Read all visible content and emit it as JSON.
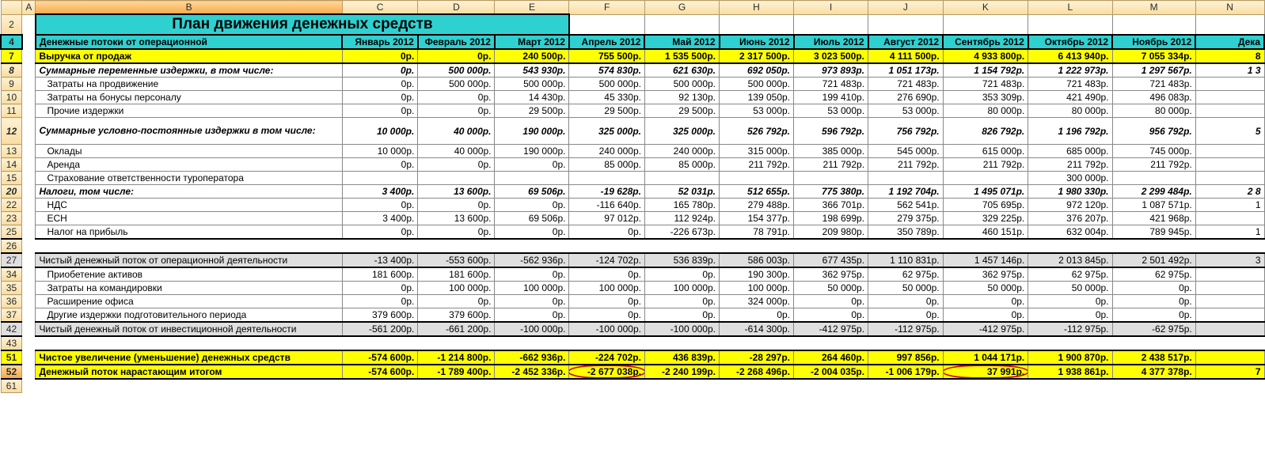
{
  "cols": [
    {
      "letter": "A",
      "cls": "colA",
      "sel": false
    },
    {
      "letter": "B",
      "cls": "colB",
      "sel": true
    },
    {
      "letter": "C",
      "cls": "colMon",
      "sel": false
    },
    {
      "letter": "D",
      "cls": "colMon",
      "sel": false
    },
    {
      "letter": "E",
      "cls": "colMon",
      "sel": false
    },
    {
      "letter": "F",
      "cls": "colMon",
      "sel": false
    },
    {
      "letter": "G",
      "cls": "colMon",
      "sel": false
    },
    {
      "letter": "H",
      "cls": "colMon",
      "sel": false
    },
    {
      "letter": "I",
      "cls": "colMon",
      "sel": false
    },
    {
      "letter": "J",
      "cls": "colMon",
      "sel": false
    },
    {
      "letter": "K",
      "cls": "colMonW",
      "sel": false
    },
    {
      "letter": "L",
      "cls": "colMonW",
      "sel": false
    },
    {
      "letter": "M",
      "cls": "colMonW",
      "sel": false
    },
    {
      "letter": "N",
      "cls": "colMon",
      "sel": false
    }
  ],
  "title": "План движения денежных средств",
  "months": [
    "Январь 2012",
    "Февраль 2012",
    "Март 2012",
    "Апрель 2012",
    "Май 2012",
    "Июнь 2012",
    "Июль 2012",
    "Август 2012",
    "Сентябрь 2012",
    "Октябрь 2012",
    "Ноябрь 2012",
    "Дека"
  ],
  "header_label": "Денежные потоки от операционной",
  "rows": [
    {
      "rn": "7",
      "cls": "yellow b2",
      "label": "Выручка от продаж",
      "vals": [
        "0р.",
        "0р.",
        "240 500р.",
        "755 500р.",
        "1 535 500р.",
        "2 317 500р.",
        "3 023 500р.",
        "4 111 500р.",
        "4 933 800р.",
        "6 413 940р.",
        "7 055 334р.",
        "8"
      ]
    },
    {
      "rn": "8",
      "cls": "bi",
      "label": "Суммарные переменные издержки, в том числе:",
      "vals": [
        "0р.",
        "500 000р.",
        "543 930р.",
        "574 830р.",
        "621 630р.",
        "692 050р.",
        "973 893р.",
        "1 051 173р.",
        "1 154 792р.",
        "1 222 973р.",
        "1 297 567р.",
        "1 3"
      ]
    },
    {
      "rn": "9",
      "cls": "",
      "ind": true,
      "label": "Затраты на продвижение",
      "vals": [
        "0р.",
        "500 000р.",
        "500 000р.",
        "500 000р.",
        "500 000р.",
        "500 000р.",
        "721 483р.",
        "721 483р.",
        "721 483р.",
        "721 483р.",
        "721 483р.",
        ""
      ]
    },
    {
      "rn": "10",
      "cls": "",
      "ind": true,
      "label": "Затраты на бонусы персоналу",
      "vals": [
        "0р.",
        "0р.",
        "14 430р.",
        "45 330р.",
        "92 130р.",
        "139 050р.",
        "199 410р.",
        "276 690р.",
        "353 309р.",
        "421 490р.",
        "496 083р.",
        ""
      ]
    },
    {
      "rn": "11",
      "cls": "",
      "ind": true,
      "label": "Прочие издержки",
      "vals": [
        "0р.",
        "0р.",
        "29 500р.",
        "29 500р.",
        "29 500р.",
        "53 000р.",
        "53 000р.",
        "53 000р.",
        "80 000р.",
        "80 000р.",
        "80 000р.",
        ""
      ]
    },
    {
      "rn": "12",
      "cls": "bi",
      "tall": true,
      "label": "Суммарные условно-постоянные издержки в том числе:",
      "vals": [
        "10 000р.",
        "40 000р.",
        "190 000р.",
        "325 000р.",
        "325 000р.",
        "526 792р.",
        "596 792р.",
        "756 792р.",
        "826 792р.",
        "1 196 792р.",
        "956 792р.",
        "5"
      ]
    },
    {
      "rn": "13",
      "cls": "",
      "ind": true,
      "label": "Оклады",
      "vals": [
        "10 000р.",
        "40 000р.",
        "190 000р.",
        "240 000р.",
        "240 000р.",
        "315 000р.",
        "385 000р.",
        "545 000р.",
        "615 000р.",
        "685 000р.",
        "745 000р.",
        ""
      ]
    },
    {
      "rn": "14",
      "cls": "",
      "ind": true,
      "label": "Аренда",
      "vals": [
        "0р.",
        "0р.",
        "0р.",
        "85 000р.",
        "85 000р.",
        "211 792р.",
        "211 792р.",
        "211 792р.",
        "211 792р.",
        "211 792р.",
        "211 792р.",
        ""
      ]
    },
    {
      "rn": "15",
      "cls": "",
      "ind": true,
      "label": "Страхование ответственности туроператора",
      "vals": [
        "",
        "",
        "",
        "",
        "",
        "",
        "",
        "",
        "",
        "300 000р.",
        "",
        ""
      ]
    },
    {
      "rn": "20",
      "cls": "bi",
      "label": "Налоги, том числе:",
      "vals": [
        "3 400р.",
        "13 600р.",
        "69 506р.",
        "-19 628р.",
        "52 031р.",
        "512 655р.",
        "775 380р.",
        "1 192 704р.",
        "1 495 071р.",
        "1 980 330р.",
        "2 299 484р.",
        "2 8"
      ]
    },
    {
      "rn": "22",
      "cls": "",
      "ind": true,
      "label": "НДС",
      "vals": [
        "0р.",
        "0р.",
        "0р.",
        "-116 640р.",
        "165 780р.",
        "279 488р.",
        "366 701р.",
        "562 541р.",
        "705 695р.",
        "972 120р.",
        "1 087 571р.",
        "1"
      ]
    },
    {
      "rn": "23",
      "cls": "",
      "ind": true,
      "label": "ЕСН",
      "vals": [
        "3 400р.",
        "13 600р.",
        "69 506р.",
        "97 012р.",
        "112 924р.",
        "154 377р.",
        "198 699р.",
        "279 375р.",
        "329 225р.",
        "376 207р.",
        "421 968р.",
        ""
      ]
    },
    {
      "rn": "25",
      "cls": "thick-bot",
      "ind": true,
      "label": "Налог на прибыль",
      "vals": [
        "0р.",
        "0р.",
        "0р.",
        "0р.",
        "-226 673р.",
        "78 791р.",
        "209 980р.",
        "350 789р.",
        "460 151р.",
        "632 004р.",
        "789 945р.",
        "1"
      ]
    },
    {
      "rn": "26",
      "cls": "",
      "empty": true
    },
    {
      "rn": "27",
      "cls": "g b2",
      "label": "Чистый денежный поток от операционной деятельности",
      "vals": [
        "-13 400р.",
        "-553 600р.",
        "-562 936р.",
        "-124 702р.",
        "536 839р.",
        "586 003р.",
        "677 435р.",
        "1 110 831р.",
        "1 457 146р.",
        "2 013 845р.",
        "2 501 492р.",
        "3"
      ]
    },
    {
      "rn": "34",
      "cls": "",
      "ind": true,
      "label": "Приобетение активов",
      "vals": [
        "181 600р.",
        "181 600р.",
        "0р.",
        "0р.",
        "0р.",
        "190 300р.",
        "362 975р.",
        "62 975р.",
        "362 975р.",
        "62 975р.",
        "62 975р.",
        ""
      ]
    },
    {
      "rn": "35",
      "cls": "",
      "ind": true,
      "label": "Затраты на командировки",
      "vals": [
        "0р.",
        "100 000р.",
        "100 000р.",
        "100 000р.",
        "100 000р.",
        "100 000р.",
        "50 000р.",
        "50 000р.",
        "50 000р.",
        "50 000р.",
        "0р.",
        ""
      ]
    },
    {
      "rn": "36",
      "cls": "",
      "ind": true,
      "label": "Расширение офиса",
      "vals": [
        "0р.",
        "0р.",
        "0р.",
        "0р.",
        "0р.",
        "324 000р.",
        "0р.",
        "0р.",
        "0р.",
        "0р.",
        "0р.",
        ""
      ]
    },
    {
      "rn": "37",
      "cls": "thick-bot",
      "ind": true,
      "label": "Другие издержки подготовительного периода",
      "vals": [
        "379 600р.",
        "379 600р.",
        "0р.",
        "0р.",
        "0р.",
        "0р.",
        "0р.",
        "0р.",
        "0р.",
        "0р.",
        "0р.",
        ""
      ]
    },
    {
      "rn": "42",
      "cls": "g b2",
      "label": "Чистый денежный поток от инвестиционной деятельности",
      "vals": [
        "-561 200р.",
        "-661 200р.",
        "-100 000р.",
        "-100 000р.",
        "-100 000р.",
        "-614 300р.",
        "-412 975р.",
        "-112 975р.",
        "-412 975р.",
        "-112 975р.",
        "-62 975р.",
        ""
      ]
    },
    {
      "rn": "43",
      "cls": "",
      "empty": true
    },
    {
      "rn": "51",
      "cls": "yellow b2",
      "label": "Чистое увеличение (уменьшение) денежных средств",
      "vals": [
        "-574 600р.",
        "-1 214 800р.",
        "-662 936р.",
        "-224 702р.",
        "436 839р.",
        "-28 297р.",
        "264 460р.",
        "997 856р.",
        "1 044 171р.",
        "1 900 870р.",
        "2 438 517р.",
        ""
      ]
    },
    {
      "rn": "52",
      "cls": "yellow b2",
      "sel": true,
      "label": "Денежный поток нарастающим итогом",
      "vals": [
        "-574 600р.",
        "-1 789 400р.",
        "-2 452 336р.",
        "-2 677 038р.",
        "-2 240 199р.",
        "-2 268 496р.",
        "-2 004 035р.",
        "-1 006 179р.",
        "37 991р.",
        "1 938 861р.",
        "4 377 378р.",
        "7"
      ],
      "circled": [
        3,
        8
      ]
    },
    {
      "rn": "61",
      "cls": "",
      "empty": true
    }
  ]
}
